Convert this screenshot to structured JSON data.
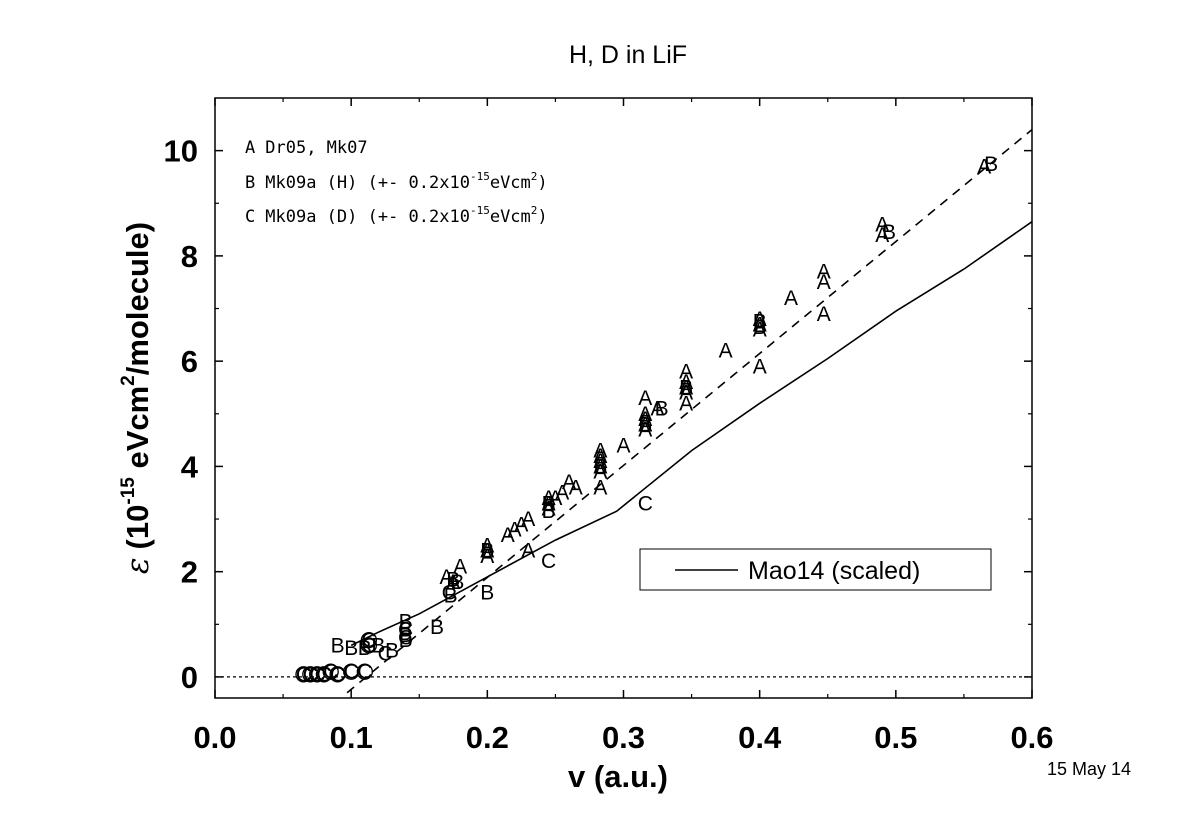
{
  "chart_data": {
    "type": "scatter",
    "title": "H, D in LiF",
    "xlabel": "v (a.u.)",
    "ylabel": {
      "symbol": "ε",
      "open": "(10",
      "exp": "-15",
      "mid": " eVcm",
      "sq": "2",
      "end": "/molecule)"
    },
    "date_stamp": "15 May 14",
    "xlim": [
      0.0,
      0.6
    ],
    "ylim": [
      -0.4,
      11.0
    ],
    "x_ticks": [
      0.0,
      0.1,
      0.2,
      0.3,
      0.4,
      0.5,
      0.6
    ],
    "x_tick_labels": [
      "0.0",
      "0.1",
      "0.2",
      "0.3",
      "0.4",
      "0.5",
      "0.6"
    ],
    "y_ticks": [
      0,
      2,
      4,
      6,
      8,
      10
    ],
    "y_tick_labels": [
      "0",
      "2",
      "4",
      "6",
      "8",
      "10"
    ],
    "grid": false,
    "annotations": [
      {
        "marker": "A",
        "text": "Dr05, Mk07"
      },
      {
        "marker": "B",
        "text": "Mk09a (H) (+- 0.2x10",
        "exp": "-15",
        "unit": "eVcm",
        "sq": "2",
        "close": ")"
      },
      {
        "marker": "C",
        "text": "Mk09a (D) (+- 0.2x10",
        "exp": "-15",
        "unit": "eVcm",
        "sq": "2",
        "close": ")"
      }
    ],
    "legend": {
      "position": "center-right",
      "entries": [
        {
          "label": "Mao14 (scaled)",
          "style": "solid"
        }
      ]
    },
    "series": [
      {
        "name": "A",
        "marker": "A",
        "points": [
          [
            0.17,
            1.9
          ],
          [
            0.175,
            1.8
          ],
          [
            0.18,
            2.1
          ],
          [
            0.2,
            2.5
          ],
          [
            0.2,
            2.4
          ],
          [
            0.2,
            2.3
          ],
          [
            0.215,
            2.7
          ],
          [
            0.22,
            2.8
          ],
          [
            0.225,
            2.9
          ],
          [
            0.23,
            3.0
          ],
          [
            0.23,
            2.4
          ],
          [
            0.245,
            3.4
          ],
          [
            0.245,
            3.3
          ],
          [
            0.245,
            3.2
          ],
          [
            0.25,
            3.4
          ],
          [
            0.255,
            3.5
          ],
          [
            0.26,
            3.7
          ],
          [
            0.265,
            3.6
          ],
          [
            0.283,
            4.3
          ],
          [
            0.283,
            4.2
          ],
          [
            0.283,
            4.1
          ],
          [
            0.283,
            4.0
          ],
          [
            0.283,
            3.9
          ],
          [
            0.283,
            3.6
          ],
          [
            0.3,
            4.4
          ],
          [
            0.316,
            5.3
          ],
          [
            0.316,
            5.0
          ],
          [
            0.316,
            4.9
          ],
          [
            0.316,
            4.8
          ],
          [
            0.316,
            4.7
          ],
          [
            0.325,
            5.1
          ],
          [
            0.346,
            5.8
          ],
          [
            0.346,
            5.6
          ],
          [
            0.346,
            5.5
          ],
          [
            0.346,
            5.4
          ],
          [
            0.346,
            5.2
          ],
          [
            0.375,
            6.2
          ],
          [
            0.4,
            6.8
          ],
          [
            0.4,
            6.7
          ],
          [
            0.4,
            6.6
          ],
          [
            0.4,
            5.9
          ],
          [
            0.423,
            7.2
          ],
          [
            0.447,
            7.7
          ],
          [
            0.447,
            7.5
          ],
          [
            0.447,
            6.9
          ],
          [
            0.49,
            8.6
          ],
          [
            0.49,
            8.4
          ],
          [
            0.565,
            9.7
          ]
        ]
      },
      {
        "name": "B",
        "marker": "B",
        "points": [
          [
            0.09,
            0.6
          ],
          [
            0.1,
            0.55
          ],
          [
            0.11,
            0.55
          ],
          [
            0.12,
            0.6
          ],
          [
            0.13,
            0.5
          ],
          [
            0.14,
            1.05
          ],
          [
            0.14,
            0.9
          ],
          [
            0.14,
            0.8
          ],
          [
            0.14,
            0.7
          ],
          [
            0.163,
            0.95
          ],
          [
            0.173,
            1.55
          ],
          [
            0.175,
            1.85
          ],
          [
            0.178,
            1.8
          ],
          [
            0.2,
            1.6
          ],
          [
            0.2,
            2.4
          ],
          [
            0.245,
            3.3
          ],
          [
            0.245,
            3.15
          ],
          [
            0.283,
            4.0
          ],
          [
            0.316,
            4.8
          ],
          [
            0.328,
            5.1
          ],
          [
            0.346,
            5.5
          ],
          [
            0.4,
            6.75
          ],
          [
            0.4,
            6.65
          ],
          [
            0.495,
            8.45
          ],
          [
            0.57,
            9.75
          ]
        ]
      },
      {
        "name": "C",
        "marker": "C",
        "points": [
          [
            0.065,
            0.05
          ],
          [
            0.07,
            0.05
          ],
          [
            0.075,
            0.05
          ],
          [
            0.08,
            0.05
          ],
          [
            0.085,
            0.1
          ],
          [
            0.09,
            0.05
          ],
          [
            0.1,
            0.1
          ],
          [
            0.11,
            0.1
          ],
          [
            0.113,
            0.7
          ],
          [
            0.113,
            0.6
          ],
          [
            0.125,
            0.45
          ],
          [
            0.14,
            0.9
          ],
          [
            0.14,
            0.75
          ],
          [
            0.172,
            1.6
          ],
          [
            0.245,
            2.2
          ],
          [
            0.316,
            3.3
          ]
        ]
      },
      {
        "name": "Mao14 (scaled)",
        "style": "solid",
        "points": [
          [
            0.1,
            0.6
          ],
          [
            0.12,
            0.85
          ],
          [
            0.15,
            1.2
          ],
          [
            0.2,
            1.9
          ],
          [
            0.25,
            2.6
          ],
          [
            0.295,
            3.15
          ],
          [
            0.35,
            4.3
          ],
          [
            0.4,
            5.2
          ],
          [
            0.45,
            6.05
          ],
          [
            0.5,
            6.95
          ],
          [
            0.55,
            7.75
          ],
          [
            0.6,
            8.65
          ]
        ]
      },
      {
        "name": "fit",
        "style": "dashed",
        "points": [
          [
            0.097,
            -0.3
          ],
          [
            0.6,
            10.4
          ]
        ]
      },
      {
        "name": "zero",
        "style": "dotted",
        "points": [
          [
            0.0,
            0.0
          ],
          [
            0.6,
            0.0
          ]
        ]
      }
    ]
  }
}
